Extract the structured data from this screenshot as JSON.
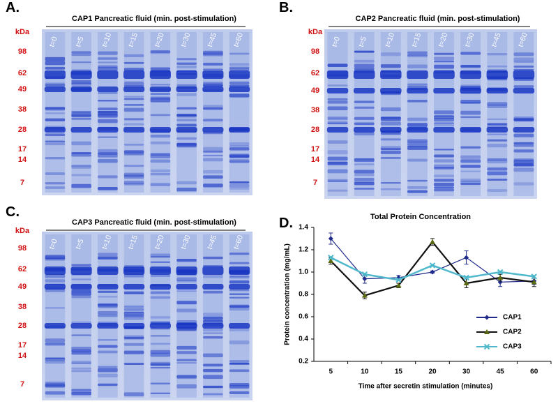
{
  "panels": [
    {
      "letter": "A.",
      "title": "CAP1 Pancreatic fluid (min. post-stimulation)",
      "kda": [
        "kDa",
        "98",
        "62",
        "49",
        "38",
        "28",
        "17",
        "14",
        "7"
      ],
      "lanes": [
        "t=0",
        "t=5",
        "t=10",
        "t=15",
        "t=20",
        "t=30",
        "t=45",
        "t=60"
      ]
    },
    {
      "letter": "B.",
      "title": "CAP2 Pancreatic fluid (min. post-stimulation)",
      "kda": [
        "kDa",
        "98",
        "62",
        "49",
        "38",
        "28",
        "17",
        "14",
        "7"
      ],
      "lanes": [
        "t=0",
        "t=5",
        "t=10",
        "t=15",
        "t=20",
        "t=30",
        "t=45",
        "t=60"
      ]
    },
    {
      "letter": "C.",
      "title": "CAP3 Pancreatic fluid (min. post-stimulation)",
      "kda": [
        "kDa",
        "98",
        "62",
        "49",
        "38",
        "28",
        "17",
        "14",
        "7"
      ],
      "lanes": [
        "t=0",
        "t=5",
        "t=10",
        "t=15",
        "t=20",
        "t=30",
        "t=45",
        "t=60"
      ]
    }
  ],
  "chart_data": {
    "type": "line",
    "letter": "D.",
    "title": "Total Protein Concentration",
    "x_label": "Time after secretin stimulation (minutes)",
    "y_label": "Protein concentration (mg/mL)",
    "categories": [
      "5",
      "10",
      "15",
      "20",
      "30",
      "45",
      "60"
    ],
    "ylim": [
      0.2,
      1.4
    ],
    "yticks": [
      0.2,
      0.4,
      0.6,
      0.8,
      {
        "value": 1,
        "label": "1.0"
      },
      1.2,
      1.4
    ],
    "series": [
      {
        "name": "CAP1",
        "color": "#1f2a8a",
        "marker": "diamond",
        "values": [
          1.3,
          0.94,
          0.95,
          1.0,
          1.13,
          0.91,
          0.92
        ],
        "errors": [
          0.05,
          0.04,
          0.02,
          0.01,
          0.06,
          0.04,
          0.03
        ]
      },
      {
        "name": "CAP2",
        "color": "#111111",
        "marker": "triangle",
        "values": [
          1.1,
          0.79,
          0.88,
          1.27,
          0.9,
          0.95,
          0.91
        ],
        "errors": [
          0.03,
          0.03,
          0.02,
          0.03,
          0.04,
          0.03,
          0.04
        ]
      },
      {
        "name": "CAP3",
        "color": "#4fb8cc",
        "marker": "cross",
        "values": [
          1.13,
          0.98,
          0.93,
          1.06,
          0.95,
          1.0,
          0.96
        ],
        "errors": [
          0.01,
          0.01,
          0.01,
          0.01,
          0.01,
          0.01,
          0.01
        ]
      }
    ]
  }
}
